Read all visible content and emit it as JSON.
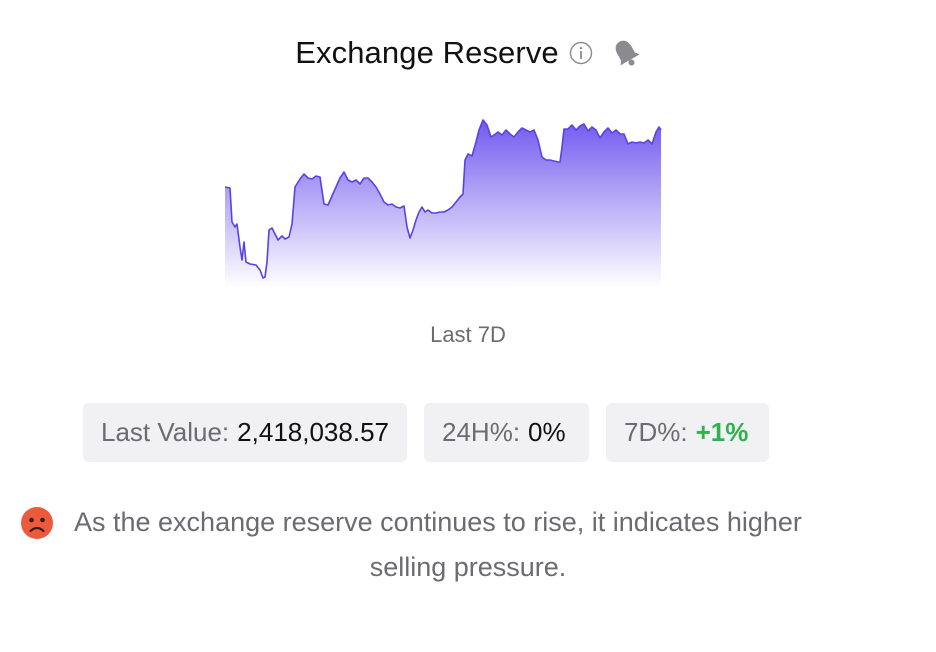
{
  "header": {
    "title": "Exchange Reserve",
    "info_icon": "info-circle-icon",
    "bell_icon": "bell-icon"
  },
  "sparkline": {
    "line_color": "#5b42e8",
    "fill_top_color": "#6a50ee",
    "fill_bottom_color": "#ffffff",
    "period_label": "Last 7D"
  },
  "stats": {
    "last_value_label": "Last Value:",
    "last_value": "2,418,038.57",
    "change_24h_label": "24H%:",
    "change_24h": "0%",
    "change_7d_label": "7D%:",
    "change_7d": "+1%",
    "positive_color": "#2fb14e"
  },
  "message": {
    "icon": "sad-face-icon",
    "line1": "As the exchange reserve continues to rise, it indicates higher",
    "line2": "selling pressure."
  }
}
